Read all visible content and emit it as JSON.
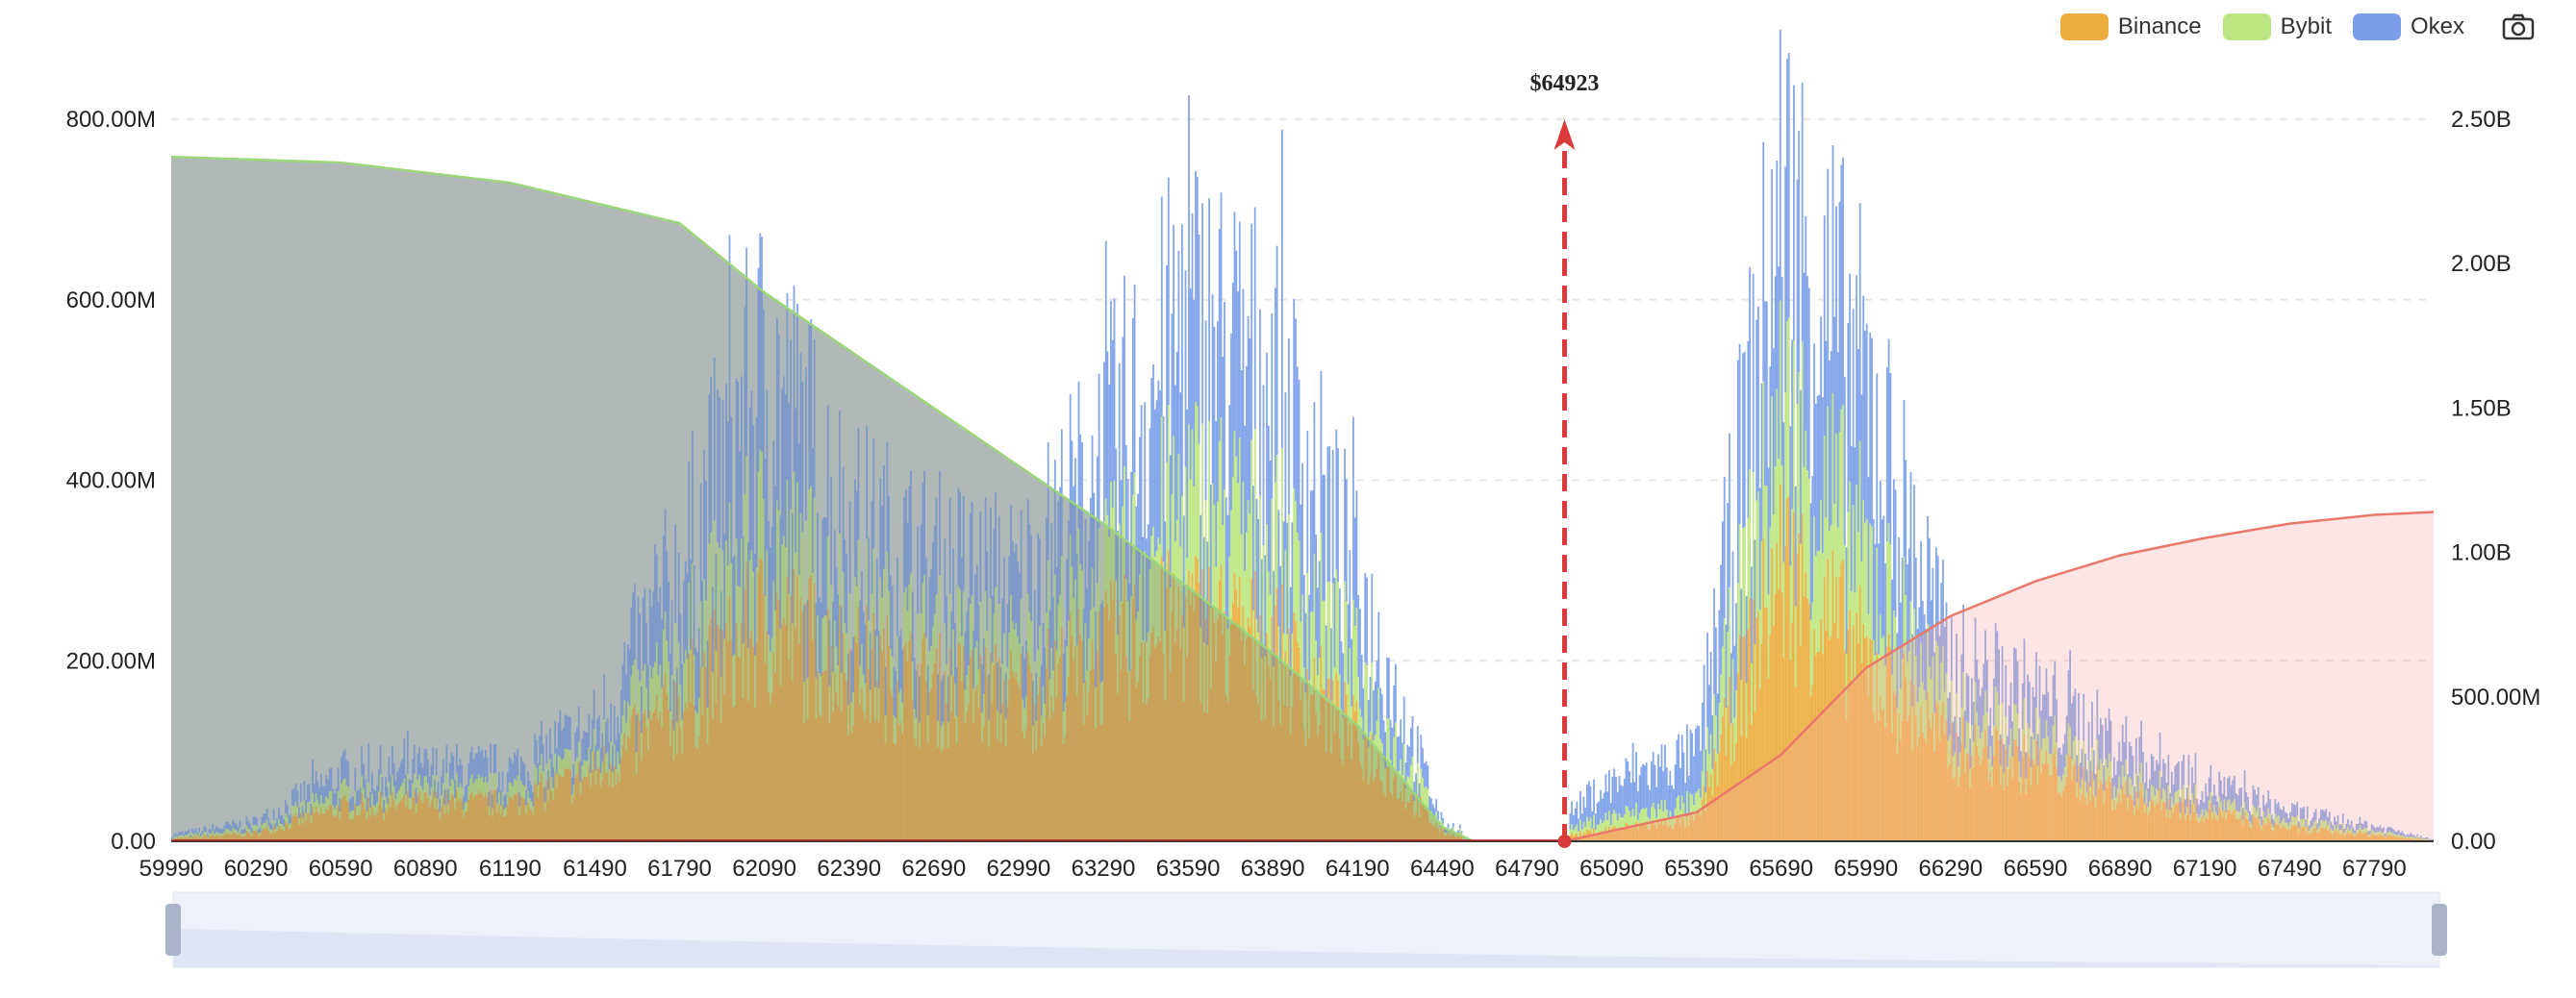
{
  "legend": [
    {
      "name": "Binance",
      "color": "#EDAD3E"
    },
    {
      "name": "Bybit",
      "color": "#BDE680"
    },
    {
      "name": "Okex",
      "color": "#7A9EE8"
    }
  ],
  "toolbar": {
    "save_icon": "camera-icon"
  },
  "marker": {
    "label": "$64923",
    "price": 64923,
    "color": "#D93B3B"
  },
  "chart_data": {
    "type": "bar",
    "x_tick_labels": [
      "59990",
      "60290",
      "60590",
      "60890",
      "61190",
      "61490",
      "61790",
      "62090",
      "62390",
      "62690",
      "62990",
      "63290",
      "63590",
      "63890",
      "64190",
      "64490",
      "64790",
      "65090",
      "65390",
      "65690",
      "65990",
      "66290",
      "66590",
      "66890",
      "67190",
      "67490",
      "67790"
    ],
    "xlim": [
      59990,
      68000
    ],
    "y_left": {
      "ticks": [
        "0.00",
        "200.00M",
        "400.00M",
        "600.00M",
        "800.00M"
      ],
      "ylim": [
        0,
        800000000
      ]
    },
    "y_right": {
      "ticks": [
        "0.00",
        "500.00M",
        "1.00B",
        "1.50B",
        "2.00B",
        "2.50B"
      ],
      "ylim": [
        0,
        2500000000
      ]
    },
    "grid": true,
    "legend_position": "top-right",
    "stacked_series": [
      "Binance",
      "Bybit",
      "Okex"
    ],
    "bar_profile_millions": [
      {
        "price": 59990,
        "binance": 3,
        "bybit": 2,
        "okex": 3
      },
      {
        "price": 60290,
        "binance": 10,
        "bybit": 5,
        "okex": 8
      },
      {
        "price": 60590,
        "binance": 40,
        "bybit": 15,
        "okex": 25
      },
      {
        "price": 60890,
        "binance": 45,
        "bybit": 15,
        "okex": 25
      },
      {
        "price": 61190,
        "binance": 45,
        "bybit": 15,
        "okex": 25
      },
      {
        "price": 61490,
        "binance": 80,
        "bybit": 20,
        "okex": 35
      },
      {
        "price": 61790,
        "binance": 160,
        "bybit": 60,
        "okex": 100
      },
      {
        "price": 62090,
        "binance": 260,
        "bybit": 100,
        "okex": 200
      },
      {
        "price": 62390,
        "binance": 210,
        "bybit": 60,
        "okex": 100
      },
      {
        "price": 62690,
        "binance": 180,
        "bybit": 50,
        "okex": 90
      },
      {
        "price": 62990,
        "binance": 170,
        "bybit": 50,
        "okex": 80
      },
      {
        "price": 63290,
        "binance": 220,
        "bybit": 80,
        "okex": 150
      },
      {
        "price": 63590,
        "binance": 260,
        "bybit": 140,
        "okex": 210
      },
      {
        "price": 63890,
        "binance": 230,
        "bybit": 120,
        "okex": 190
      },
      {
        "price": 64190,
        "binance": 120,
        "bybit": 80,
        "okex": 100
      },
      {
        "price": 64490,
        "binance": 10,
        "bybit": 5,
        "okex": 5
      },
      {
        "price": 64790,
        "binance": 0,
        "bybit": 0,
        "okex": 0
      },
      {
        "price": 65090,
        "binance": 15,
        "bybit": 15,
        "okex": 40
      },
      {
        "price": 65390,
        "binance": 25,
        "bybit": 20,
        "okex": 60
      },
      {
        "price": 65690,
        "binance": 330,
        "bybit": 170,
        "okex": 250
      },
      {
        "price": 65990,
        "binance": 210,
        "bybit": 120,
        "okex": 200
      },
      {
        "price": 66290,
        "binance": 110,
        "bybit": 40,
        "okex": 60
      },
      {
        "price": 66590,
        "binance": 90,
        "bybit": 30,
        "okex": 50
      },
      {
        "price": 66890,
        "binance": 55,
        "bybit": 20,
        "okex": 40
      },
      {
        "price": 67190,
        "binance": 35,
        "bybit": 10,
        "okex": 25
      },
      {
        "price": 67490,
        "binance": 15,
        "bybit": 8,
        "okex": 12
      },
      {
        "price": 67790,
        "binance": 8,
        "bybit": 4,
        "okex": 6
      },
      {
        "price": 68000,
        "binance": 1,
        "bybit": 1,
        "okex": 1
      }
    ],
    "cumulative_left_area_billions": [
      {
        "price": 59990,
        "value": 2.37
      },
      {
        "price": 60590,
        "value": 2.35
      },
      {
        "price": 61190,
        "value": 2.28
      },
      {
        "price": 61790,
        "value": 2.14
      },
      {
        "price": 62090,
        "value": 1.9
      },
      {
        "price": 62390,
        "value": 1.7
      },
      {
        "price": 62690,
        "value": 1.5
      },
      {
        "price": 62990,
        "value": 1.3
      },
      {
        "price": 63290,
        "value": 1.1
      },
      {
        "price": 63590,
        "value": 0.88
      },
      {
        "price": 63890,
        "value": 0.65
      },
      {
        "price": 64190,
        "value": 0.4
      },
      {
        "price": 64490,
        "value": 0.05
      },
      {
        "price": 64600,
        "value": 0
      }
    ],
    "cumulative_right_area_billions": [
      {
        "price": 64923,
        "value": 0
      },
      {
        "price": 65390,
        "value": 0.1
      },
      {
        "price": 65690,
        "value": 0.3
      },
      {
        "price": 65990,
        "value": 0.6
      },
      {
        "price": 66290,
        "value": 0.78
      },
      {
        "price": 66590,
        "value": 0.9
      },
      {
        "price": 66890,
        "value": 0.99
      },
      {
        "price": 67190,
        "value": 1.05
      },
      {
        "price": 67490,
        "value": 1.1
      },
      {
        "price": 67790,
        "value": 1.13
      },
      {
        "price": 68000,
        "value": 1.14
      }
    ]
  }
}
